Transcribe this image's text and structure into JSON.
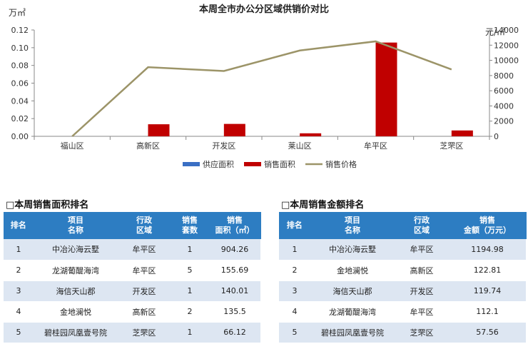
{
  "chart_data": {
    "type": "bar",
    "title": "本周全市办公分区域供销价对比",
    "y_left_unit": "万㎡",
    "y_right_unit": "元/㎡",
    "categories": [
      "福山区",
      "高新区",
      "开发区",
      "莱山区",
      "牟平区",
      "芝罘区"
    ],
    "y_left_ticks": [
      "0.00",
      "0.02",
      "0.04",
      "0.06",
      "0.08",
      "0.10",
      "0.12"
    ],
    "y_right_ticks": [
      "0",
      "2000",
      "4000",
      "6000",
      "8000",
      "10000",
      "12000",
      "14000"
    ],
    "ylim_left": [
      0,
      0.12
    ],
    "ylim_right": [
      0,
      14000
    ],
    "series": [
      {
        "name": "供应面积",
        "type": "bar",
        "axis": "left",
        "color": "#3a6fc4",
        "values": [
          0,
          0,
          0,
          0,
          0,
          0
        ]
      },
      {
        "name": "销售面积",
        "type": "bar",
        "axis": "left",
        "color": "#c00000",
        "values": [
          0,
          0.0136,
          0.014,
          0.0034,
          0.1058,
          0.0066
        ]
      },
      {
        "name": "销售价格",
        "type": "line",
        "axis": "right",
        "color": "#9c9468",
        "values": [
          0,
          9100,
          8600,
          11300,
          12500,
          8800
        ]
      }
    ],
    "legend_position": "bottom",
    "grid": false
  },
  "left_ranking": {
    "title": "□本周销售面积排名",
    "headers": [
      [
        "排名"
      ],
      [
        "项目",
        "名称"
      ],
      [
        "行政",
        "区域"
      ],
      [
        "销售",
        "套数"
      ],
      [
        "销售",
        "面积（㎡）"
      ]
    ],
    "rows": [
      [
        "1",
        "中冶沁海云墅",
        "牟平区",
        "1",
        "904.26"
      ],
      [
        "2",
        "龙湖葡醍海湾",
        "牟平区",
        "5",
        "155.69"
      ],
      [
        "3",
        "海信天山郡",
        "开发区",
        "1",
        "140.01"
      ],
      [
        "4",
        "金地澜悦",
        "高新区",
        "2",
        "135.5"
      ],
      [
        "5",
        "碧桂园凤凰壹号院",
        "芝罘区",
        "1",
        "66.12"
      ]
    ]
  },
  "right_ranking": {
    "title": "□本周销售金额排名",
    "headers": [
      [
        "排名"
      ],
      [
        "项目",
        "名称"
      ],
      [
        "行政",
        "区域"
      ],
      [
        "销售",
        "金额（万元）"
      ]
    ],
    "rows": [
      [
        "1",
        "中冶沁海云墅",
        "牟平区",
        "1194.98"
      ],
      [
        "2",
        "金地澜悦",
        "高新区",
        "122.81"
      ],
      [
        "3",
        "海信天山郡",
        "开发区",
        "119.74"
      ],
      [
        "4",
        "龙湖葡醍海湾",
        "牟平区",
        "112.1"
      ],
      [
        "5",
        "碧桂园凤凰壹号院",
        "芝罘区",
        "57.56"
      ]
    ]
  }
}
